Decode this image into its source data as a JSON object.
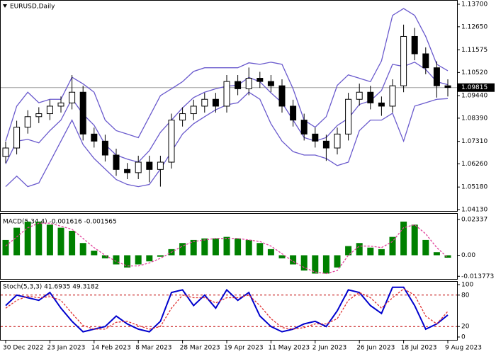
{
  "chart_data": [
    {
      "type": "candlestick",
      "title": "EURUSD,Daily",
      "open": [
        1.066,
        1.07,
        1.0797,
        1.0846,
        1.086,
        1.0895,
        1.091,
        1.096,
        1.0765,
        1.0732,
        1.0667,
        1.06,
        1.0585,
        1.0634,
        1.06,
        1.0634,
        1.083,
        1.086,
        1.0895,
        1.0927,
        1.0895,
        1.101,
        1.0976,
        1.1025,
        1.101,
        1.099,
        1.0895,
        1.083,
        1.0765,
        1.0732,
        1.07,
        1.0765,
        1.0927,
        1.096,
        1.091,
        1.0895,
        1.099,
        1.122,
        1.1139,
        1.1074,
        1.099
      ],
      "high": [
        1.073,
        1.0827,
        1.0876,
        1.089,
        1.0925,
        1.094,
        1.104,
        1.099,
        1.0795,
        1.0762,
        1.0697,
        1.063,
        1.0664,
        1.0664,
        1.0664,
        1.086,
        1.089,
        1.0925,
        1.0957,
        1.0957,
        1.104,
        1.104,
        1.1075,
        1.1055,
        1.104,
        1.102,
        1.0925,
        1.086,
        1.0795,
        1.0762,
        1.0795,
        1.0957,
        1.1,
        1.099,
        1.094,
        1.102,
        1.1275,
        1.126,
        1.1169,
        1.1104,
        1.102
      ],
      "low": [
        1.063,
        1.067,
        1.0767,
        1.0816,
        1.083,
        1.0865,
        1.088,
        1.0735,
        1.0702,
        1.0637,
        1.057,
        1.0555,
        1.0555,
        1.054,
        1.052,
        1.0604,
        1.08,
        1.083,
        1.0865,
        1.0865,
        1.0865,
        1.0946,
        1.0946,
        1.098,
        1.096,
        1.0865,
        1.08,
        1.0735,
        1.0702,
        1.064,
        1.067,
        1.0735,
        1.0897,
        1.088,
        1.085,
        1.0865,
        1.096,
        1.1109,
        1.1044,
        1.0935,
        1.094
      ],
      "close": [
        1.07,
        1.0797,
        1.0846,
        1.086,
        1.0895,
        1.091,
        1.096,
        1.0765,
        1.0732,
        1.0667,
        1.06,
        1.0585,
        1.0634,
        1.06,
        1.0634,
        1.083,
        1.086,
        1.0895,
        1.0927,
        1.0895,
        1.101,
        1.0976,
        1.1025,
        1.101,
        1.099,
        1.0895,
        1.083,
        1.0765,
        1.0732,
        1.07,
        1.0765,
        1.0927,
        1.096,
        1.091,
        1.0895,
        1.099,
        1.122,
        1.1139,
        1.1074,
        1.099,
        1.0982
      ],
      "series": [
        {
          "color": "#6a5acd",
          "values": [
            1.0732,
            1.0895,
            1.096,
            1.0911,
            1.0927,
            1.0927,
            1.103,
            1.0999,
            1.096,
            1.083,
            1.0781,
            1.0765,
            1.0748,
            1.0846,
            1.0944,
            1.0976,
            1.1009,
            1.1057,
            1.1074,
            1.1074,
            1.1074,
            1.1074,
            1.1097,
            1.109,
            1.11,
            1.109,
            1.0976,
            1.083,
            1.0797,
            1.0846,
            1.0992,
            1.1041,
            1.1025,
            1.1009,
            1.1106,
            1.1318,
            1.135,
            1.1318,
            1.122,
            1.109,
            1.106
          ]
        },
        {
          "color": "#6a5acd",
          "values": [
            1.0626,
            1.0732,
            1.074,
            1.0724,
            1.0781,
            1.083,
            1.093,
            1.0858,
            1.0806,
            1.0716,
            1.0667,
            1.0648,
            1.0634,
            1.0688,
            1.0773,
            1.083,
            1.0887,
            1.0935,
            1.096,
            1.0976,
            1.0988,
            1.0993,
            1.1029,
            1.1009,
            1.0957,
            1.0911,
            1.083,
            1.0749,
            1.0732,
            1.0749,
            1.0805,
            1.0838,
            1.0903,
            1.092,
            1.0968,
            1.109,
            1.108,
            1.11,
            1.1066,
            1.1009,
            1.0995
          ]
        },
        {
          "color": "#6a5acd",
          "values": [
            1.052,
            1.0569,
            1.052,
            1.0537,
            1.0634,
            1.0732,
            1.083,
            1.0716,
            1.0651,
            1.0602,
            1.0553,
            1.053,
            1.052,
            1.053,
            1.0602,
            1.0683,
            1.0765,
            1.0813,
            1.0846,
            1.0878,
            1.0901,
            1.0911,
            1.096,
            1.0927,
            1.0813,
            1.0732,
            1.0683,
            1.0667,
            1.0667,
            1.0651,
            1.0618,
            1.0634,
            1.0781,
            1.083,
            1.083,
            1.0862,
            1.0732,
            1.0895,
            1.0911,
            1.0927,
            1.093
          ]
        }
      ],
      "last_price": 1.09815,
      "ylim": [
        1.0413,
        1.137
      ],
      "yticks": [
        {
          "value": 1.137,
          "label": "1.13700"
        },
        {
          "value": 1.1265,
          "label": "1.12650"
        },
        {
          "value": 1.11575,
          "label": "1.11575"
        },
        {
          "value": 1.1052,
          "label": "1.10520"
        },
        {
          "value": 1.0944,
          "label": "1.09440"
        },
        {
          "value": 1.0839,
          "label": "1.08390"
        },
        {
          "value": 1.0731,
          "label": "1.07310"
        },
        {
          "value": 1.0626,
          "label": "1.06260"
        },
        {
          "value": 1.0518,
          "label": "1.05180"
        },
        {
          "value": 1.0413,
          "label": "1.04130"
        }
      ]
    },
    {
      "type": "bar",
      "title": "MACD(5,34,4) -0.001616 -0.001565",
      "color": "#008000",
      "values": [
        0.01,
        0.018,
        0.022,
        0.022,
        0.02,
        0.018,
        0.016,
        0.008,
        0.003,
        -0.002,
        -0.006,
        -0.008,
        -0.006,
        -0.004,
        -0.001,
        0.004,
        0.008,
        0.01,
        0.011,
        0.011,
        0.012,
        0.011,
        0.01,
        0.008,
        0.004,
        -0.002,
        -0.006,
        -0.01,
        -0.012,
        -0.012,
        -0.008,
        0.006,
        0.008,
        0.005,
        0.004,
        0.012,
        0.022,
        0.02,
        0.01,
        0.002,
        -0.0016
      ],
      "series": [
        {
          "color": "#e0409a",
          "values": [
            0.006,
            0.012,
            0.018,
            0.021,
            0.021,
            0.019,
            0.017,
            0.011,
            0.005,
            0.0,
            -0.004,
            -0.007,
            -0.007,
            -0.005,
            -0.002,
            0.002,
            0.006,
            0.009,
            0.01,
            0.011,
            0.011,
            0.011,
            0.01,
            0.009,
            0.006,
            0.001,
            -0.004,
            -0.008,
            -0.011,
            -0.012,
            -0.01,
            0.0,
            0.006,
            0.006,
            0.005,
            0.009,
            0.018,
            0.02,
            0.014,
            0.005,
            -0.0016
          ]
        }
      ],
      "ylim": [
        -0.0155,
        0.0271
      ],
      "yticks": [
        0.02337,
        {
          "value": 0,
          "label": "0.00"
        },
        -0.013773
      ]
    },
    {
      "type": "line",
      "title": "Stoch(5,3,3) 41.6935 49.3182",
      "categories": [
        "30 Dec 2022",
        null,
        null,
        null,
        "23 Jan 2023",
        null,
        null,
        null,
        "14 Feb 2023",
        null,
        null,
        null,
        "8 Mar 2023",
        null,
        null,
        null,
        "28 Mar 2023",
        null,
        null,
        null,
        "19 Apr 2023",
        null,
        null,
        null,
        "11 May 2023",
        null,
        null,
        null,
        "2 Jun 2023",
        null,
        null,
        null,
        "26 Jun 2023",
        null,
        null,
        null,
        "18 Jul 2023",
        null,
        null,
        null,
        "9 Aug 2023"
      ],
      "series": [
        {
          "color": "#0000cd",
          "values": [
            60,
            80,
            75,
            70,
            85,
            55,
            30,
            10,
            15,
            20,
            40,
            25,
            15,
            10,
            30,
            85,
            90,
            60,
            80,
            55,
            90,
            70,
            85,
            40,
            20,
            10,
            15,
            25,
            30,
            20,
            50,
            90,
            85,
            60,
            45,
            95,
            95,
            60,
            15,
            25,
            42
          ]
        },
        {
          "color": "#e03030",
          "values": [
            55,
            70,
            78,
            75,
            77,
            70,
            45,
            22,
            15,
            15,
            28,
            30,
            22,
            15,
            20,
            55,
            80,
            75,
            75,
            65,
            75,
            75,
            80,
            60,
            35,
            18,
            15,
            18,
            25,
            25,
            35,
            70,
            85,
            75,
            55,
            75,
            92,
            80,
            40,
            25,
            49
          ]
        }
      ],
      "ylim": [
        0,
        100
      ],
      "yticks": [
        100,
        80,
        20,
        0
      ]
    }
  ]
}
